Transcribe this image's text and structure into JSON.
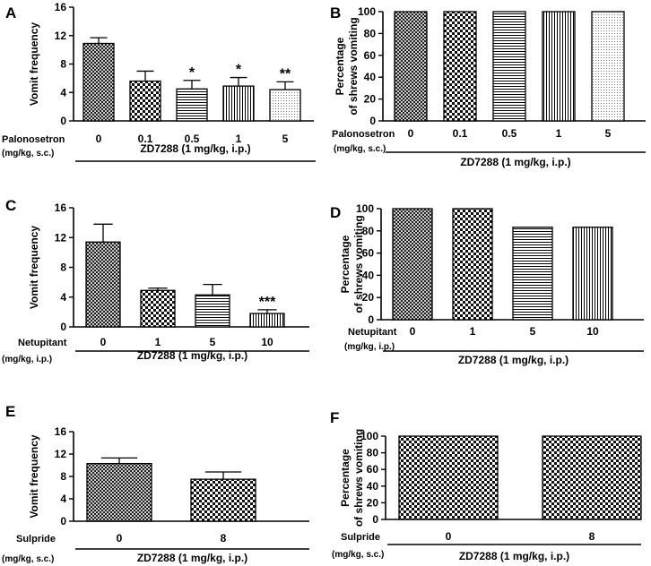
{
  "chart_data": [
    {
      "panel": "A",
      "type": "bar",
      "ylabel": "Vomit frequency",
      "ylim": [
        0,
        16
      ],
      "yticks": [
        0,
        4,
        8,
        12,
        16
      ],
      "treatment_label": "Palonosetron",
      "treatment_unit": "(mg/kg, s.c.)",
      "group_label": "ZD7288 (1 mg/kg, i.p.)",
      "categories": [
        "0",
        "0.1",
        "0.5",
        "1",
        "5"
      ],
      "values": [
        10.9,
        5.6,
        4.5,
        4.9,
        4.4
      ],
      "errors": [
        0.8,
        1.4,
        1.2,
        1.2,
        1.1
      ],
      "significance": [
        "",
        "",
        "*",
        "*",
        "**"
      ],
      "patterns": [
        "cross",
        "check",
        "hlines",
        "vlines",
        "dots"
      ]
    },
    {
      "panel": "B",
      "type": "bar",
      "ylabel": "Percentage of shrews vomiting",
      "ylabel_lines": [
        "Percentage",
        "of shrews vomiting"
      ],
      "ylim": [
        0,
        100
      ],
      "yticks": [
        0,
        20,
        40,
        60,
        80,
        100
      ],
      "treatment_label": "Palonosetron",
      "treatment_unit": "(mg/kg, s.c.)",
      "group_label": "ZD7288 (1 mg/kg, i.p.)",
      "categories": [
        "0",
        "0.1",
        "0.5",
        "1",
        "5"
      ],
      "values": [
        100,
        100,
        100,
        100,
        100
      ],
      "patterns": [
        "cross",
        "check",
        "hlines",
        "vlines",
        "dots"
      ]
    },
    {
      "panel": "C",
      "type": "bar",
      "ylabel": "Vomit frequency",
      "ylim": [
        0,
        16
      ],
      "yticks": [
        0,
        4,
        8,
        12,
        16
      ],
      "treatment_label": "Netupitant",
      "treatment_unit": "(mg/kg, i.p.)",
      "group_label": "ZD7288 (1 mg/kg, i.p.)",
      "categories": [
        "0",
        "1",
        "5",
        "10"
      ],
      "values": [
        11.4,
        4.9,
        4.3,
        1.8
      ],
      "errors": [
        2.4,
        0.3,
        1.4,
        0.5
      ],
      "significance": [
        "",
        "",
        "",
        "***"
      ],
      "patterns": [
        "cross",
        "check",
        "hlines",
        "vlines"
      ]
    },
    {
      "panel": "D",
      "type": "bar",
      "ylabel": "Percentage of shrews vomiting",
      "ylabel_lines": [
        "Percentage",
        "of shrews vomiting"
      ],
      "ylim": [
        0,
        100
      ],
      "yticks": [
        0,
        20,
        40,
        60,
        80,
        100
      ],
      "treatment_label": "Netupitant",
      "treatment_unit": "(mg/kg, i.p.)",
      "group_label": "ZD7288 (1 mg/kg, i.p.)",
      "categories": [
        "0",
        "1",
        "5",
        "10"
      ],
      "values": [
        100,
        100,
        83.3,
        83.3
      ],
      "patterns": [
        "cross",
        "check",
        "hlines",
        "vlines"
      ]
    },
    {
      "panel": "E",
      "type": "bar",
      "ylabel": "Vomit frequency",
      "ylim": [
        0,
        16
      ],
      "yticks": [
        0,
        4,
        8,
        12,
        16
      ],
      "treatment_label": "Sulpride",
      "treatment_unit": "(mg/kg, s.c.)",
      "group_label": "ZD7288 (1 mg/kg, i.p.)",
      "categories": [
        "0",
        "8"
      ],
      "values": [
        10.3,
        7.5
      ],
      "errors": [
        1.0,
        1.3
      ],
      "significance": [
        "",
        ""
      ],
      "patterns": [
        "cross",
        "check"
      ]
    },
    {
      "panel": "F",
      "type": "bar",
      "ylabel": "Percentage of shrews vomiting",
      "ylabel_lines": [
        "Percentage",
        "of shrews vomiting"
      ],
      "ylim": [
        0,
        100
      ],
      "yticks": [
        0,
        20,
        40,
        60,
        80,
        100
      ],
      "treatment_label": "Sulpride",
      "treatment_unit": "(mg/kg, s.c.)",
      "group_label": "ZD7288 (1 mg/kg, i.p.)",
      "categories": [
        "0",
        "8"
      ],
      "values": [
        100,
        100
      ],
      "patterns": [
        "check",
        "check"
      ]
    }
  ]
}
